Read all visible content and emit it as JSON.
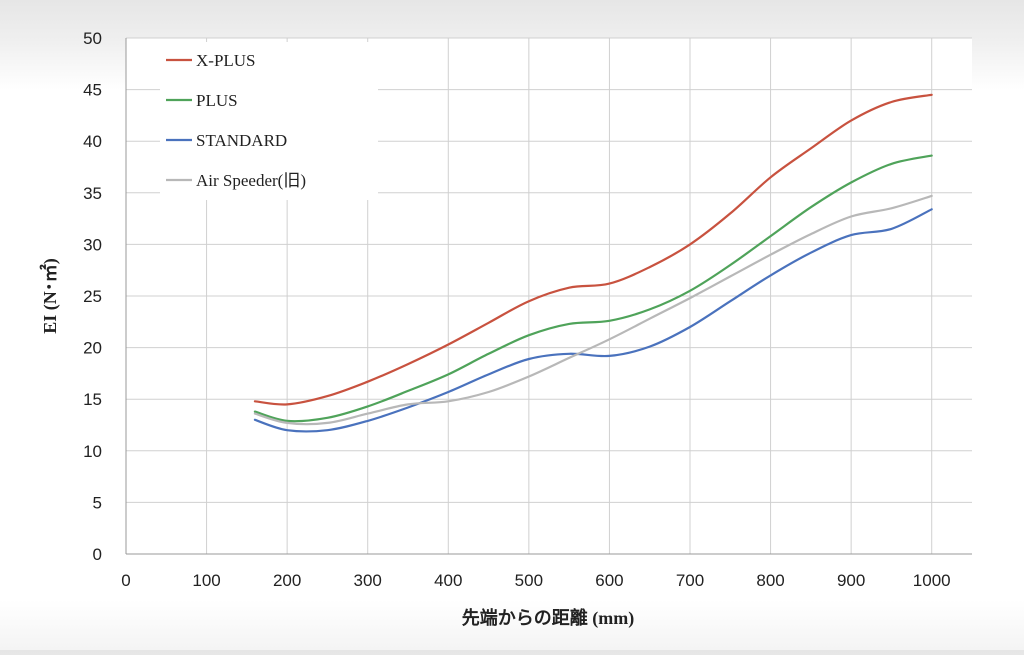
{
  "chart_data": {
    "type": "line",
    "title": "",
    "xlabel": "先端からの距離 (mm)",
    "ylabel": "EI (N･㎡)",
    "xlim": [
      0,
      1050
    ],
    "ylim": [
      0,
      50
    ],
    "x_ticks": [
      0,
      100,
      200,
      300,
      400,
      500,
      600,
      700,
      800,
      900,
      1000
    ],
    "y_ticks": [
      0,
      5,
      10,
      15,
      20,
      25,
      30,
      35,
      40,
      45,
      50
    ],
    "grid": true,
    "legend_position": "top-left",
    "series": [
      {
        "name": "X-PLUS",
        "color": "#c8523f",
        "points": [
          [
            160,
            14.8
          ],
          [
            200,
            14.5
          ],
          [
            250,
            15.3
          ],
          [
            300,
            16.7
          ],
          [
            350,
            18.4
          ],
          [
            400,
            20.3
          ],
          [
            450,
            22.4
          ],
          [
            500,
            24.5
          ],
          [
            550,
            25.8
          ],
          [
            600,
            26.2
          ],
          [
            650,
            27.8
          ],
          [
            700,
            30.0
          ],
          [
            750,
            33.0
          ],
          [
            800,
            36.5
          ],
          [
            850,
            39.3
          ],
          [
            900,
            42.0
          ],
          [
            950,
            43.8
          ],
          [
            1000,
            44.5
          ]
        ]
      },
      {
        "name": "PLUS",
        "color": "#4fa35a",
        "points": [
          [
            160,
            13.8
          ],
          [
            200,
            12.9
          ],
          [
            250,
            13.2
          ],
          [
            300,
            14.3
          ],
          [
            350,
            15.8
          ],
          [
            400,
            17.4
          ],
          [
            450,
            19.4
          ],
          [
            500,
            21.2
          ],
          [
            550,
            22.3
          ],
          [
            600,
            22.6
          ],
          [
            650,
            23.7
          ],
          [
            700,
            25.5
          ],
          [
            750,
            28.0
          ],
          [
            800,
            30.8
          ],
          [
            850,
            33.6
          ],
          [
            900,
            36.0
          ],
          [
            950,
            37.8
          ],
          [
            1000,
            38.6
          ]
        ]
      },
      {
        "name": "STANDARD",
        "color": "#4a72bd",
        "points": [
          [
            160,
            13.0
          ],
          [
            200,
            12.0
          ],
          [
            250,
            12.0
          ],
          [
            300,
            12.9
          ],
          [
            350,
            14.2
          ],
          [
            400,
            15.7
          ],
          [
            450,
            17.4
          ],
          [
            500,
            18.9
          ],
          [
            550,
            19.4
          ],
          [
            600,
            19.2
          ],
          [
            650,
            20.1
          ],
          [
            700,
            22.0
          ],
          [
            750,
            24.5
          ],
          [
            800,
            27.0
          ],
          [
            850,
            29.2
          ],
          [
            900,
            30.9
          ],
          [
            950,
            31.5
          ],
          [
            1000,
            33.4
          ]
        ]
      },
      {
        "name": "Air Speeder(旧)",
        "color": "#b8b8b8",
        "points": [
          [
            160,
            13.6
          ],
          [
            200,
            12.7
          ],
          [
            250,
            12.7
          ],
          [
            300,
            13.6
          ],
          [
            350,
            14.5
          ],
          [
            400,
            14.8
          ],
          [
            450,
            15.7
          ],
          [
            500,
            17.2
          ],
          [
            550,
            19.0
          ],
          [
            600,
            20.8
          ],
          [
            650,
            22.8
          ],
          [
            700,
            24.8
          ],
          [
            750,
            26.9
          ],
          [
            800,
            29.0
          ],
          [
            850,
            31.0
          ],
          [
            900,
            32.7
          ],
          [
            950,
            33.5
          ],
          [
            1000,
            34.7
          ]
        ]
      }
    ]
  }
}
